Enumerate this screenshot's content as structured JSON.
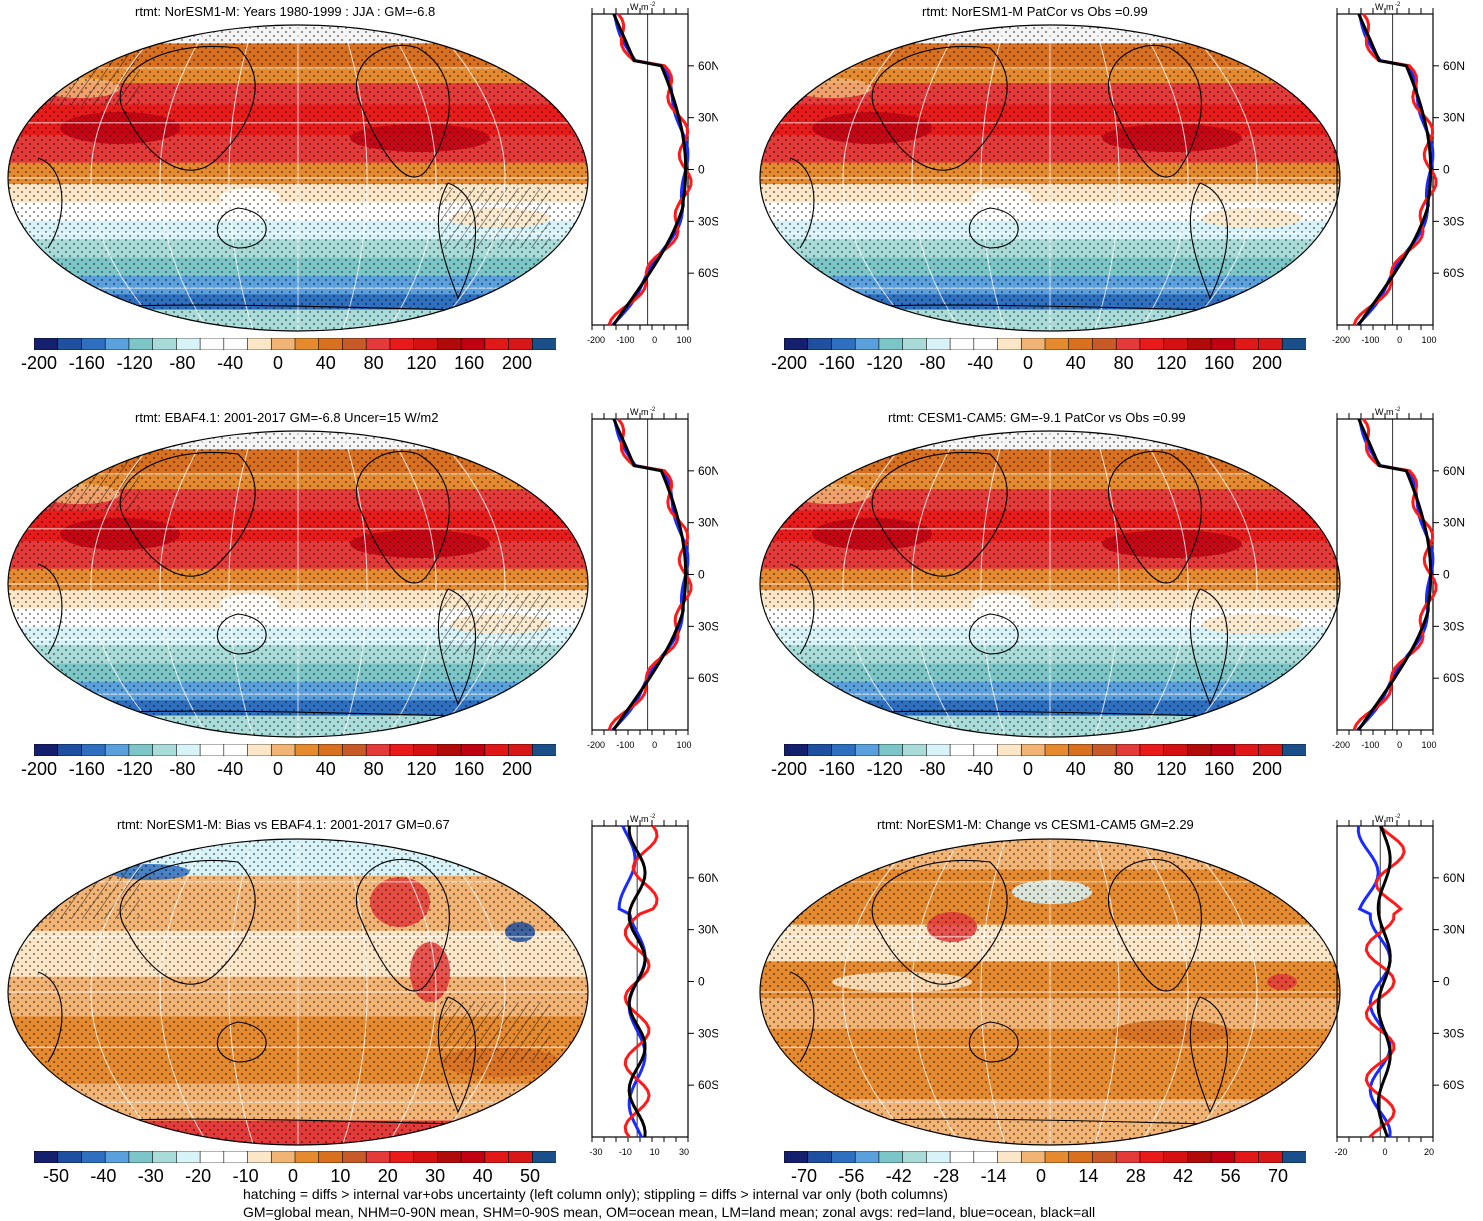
{
  "panels": [
    {
      "title": "rtmt: NorESM1-M: Years 1980-1999 : JJA : GM=-6.8",
      "type": "mean",
      "hatch": true
    },
    {
      "title": "rtmt: NorESM1-M PatCor vs Obs =0.99",
      "type": "mean",
      "hatch": false
    },
    {
      "title": "rtmt: EBAF4.1: 2001-2017 GM=-6.8 Uncer=15 W/m2",
      "type": "mean",
      "hatch": true
    },
    {
      "title": "rtmt: CESM1-CAM5: GM=-9.1 PatCor vs Obs =0.99",
      "type": "mean",
      "hatch": false
    },
    {
      "title": "rtmt: NorESM1-M: Bias vs EBAF4.1: 2001-2017 GM=0.67",
      "type": "bias",
      "hatch": true
    },
    {
      "title": "rtmt: NorESM1-M: Change vs CESM1-CAM5 GM=2.29",
      "type": "change",
      "hatch": false
    }
  ],
  "colorbars": {
    "mean": [
      "-200",
      "-160",
      "-120",
      "-80",
      "-40",
      "0",
      "40",
      "80",
      "120",
      "160",
      "200"
    ],
    "bias": [
      "-50",
      "-40",
      "-30",
      "-20",
      "-10",
      "0",
      "10",
      "20",
      "30",
      "40",
      "50"
    ],
    "change": [
      "-70",
      "-56",
      "-42",
      "-28",
      "-14",
      "0",
      "14",
      "28",
      "42",
      "56",
      "70"
    ]
  },
  "palette": [
    "#14206e",
    "#1f4f9f",
    "#2f6fc0",
    "#5aa0dc",
    "#7cc6c8",
    "#a9dcd8",
    "#d8f3f7",
    "#ffffff",
    "#ffffff",
    "#fbe6c8",
    "#f2b474",
    "#e58a2e",
    "#d87020",
    "#c85a28",
    "#e43a3a",
    "#e81a1a",
    "#d41010",
    "#b00a0a",
    "#c00012",
    "#e01818",
    "#d81818",
    "#1a4f8a"
  ],
  "zonal": {
    "unit": "W m",
    "unit_sup": "-2",
    "lat_labels": [
      "60N",
      "30N",
      "0",
      "30S",
      "60S"
    ],
    "mean_x_ticks": [
      "-200",
      "-100",
      "0",
      "100"
    ],
    "bias_x_ticks": [
      "-30",
      "-10",
      "10",
      "30"
    ],
    "change_x_ticks": [
      "-20",
      "0",
      "20"
    ],
    "line_colors": {
      "land": "#ff1a1a",
      "ocean": "#1a2bff",
      "all": "#000000"
    }
  },
  "footer": {
    "line1": "hatching = diffs > internal var+obs uncertainty (left column only); stippling = diffs > internal var only (both columns)",
    "line2": "GM=global mean, NHM=0-90N mean, SHM=0-90S mean, OM=ocean mean, LM=land mean; zonal avgs: red=land, blue=ocean, black=all"
  }
}
